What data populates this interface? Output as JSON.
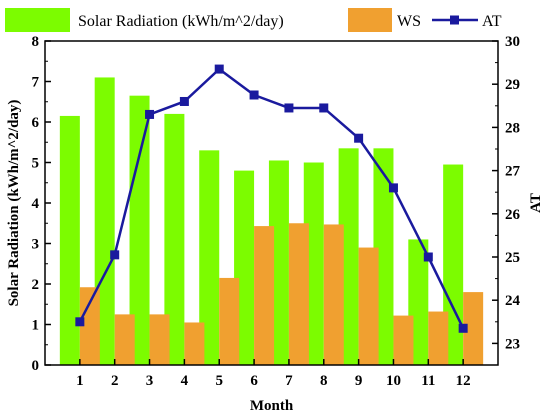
{
  "chart_data": {
    "type": "bar",
    "categories": [
      "1",
      "2",
      "3",
      "4",
      "5",
      "6",
      "7",
      "8",
      "9",
      "10",
      "11",
      "12"
    ],
    "xlabel": "Month",
    "ylabel_left": "Solar Radiation (kWh/m^2/day)",
    "ylabel_right": "AT",
    "ylim_left": [
      0,
      8
    ],
    "ylim_right": [
      22.5,
      30
    ],
    "yticks_left": [
      "0",
      "1",
      "2",
      "3",
      "4",
      "5",
      "6",
      "7",
      "8"
    ],
    "yticks_right": [
      "23",
      "24",
      "25",
      "26",
      "27",
      "28",
      "29",
      "30"
    ],
    "series": [
      {
        "name": "Solar Radiation (kWh/m^2/day)",
        "kind": "bar",
        "axis": "left",
        "color": "#7CFC00",
        "values": [
          6.15,
          7.1,
          6.65,
          6.2,
          5.3,
          4.8,
          5.05,
          5.0,
          5.35,
          5.35,
          3.1,
          4.95
        ]
      },
      {
        "name": "WS",
        "kind": "bar",
        "axis": "left",
        "color": "#F0A030",
        "values": [
          1.92,
          1.25,
          1.25,
          1.05,
          2.15,
          3.43,
          3.5,
          3.47,
          2.9,
          1.22,
          1.32,
          1.8
        ]
      },
      {
        "name": "AT",
        "kind": "line",
        "axis": "right",
        "color": "#1a1a9e",
        "marker": "square",
        "values": [
          23.5,
          25.05,
          28.3,
          28.6,
          29.35,
          28.75,
          28.45,
          28.45,
          27.75,
          26.6,
          25.0,
          23.35
        ]
      }
    ],
    "legend": "top",
    "grid": false
  }
}
